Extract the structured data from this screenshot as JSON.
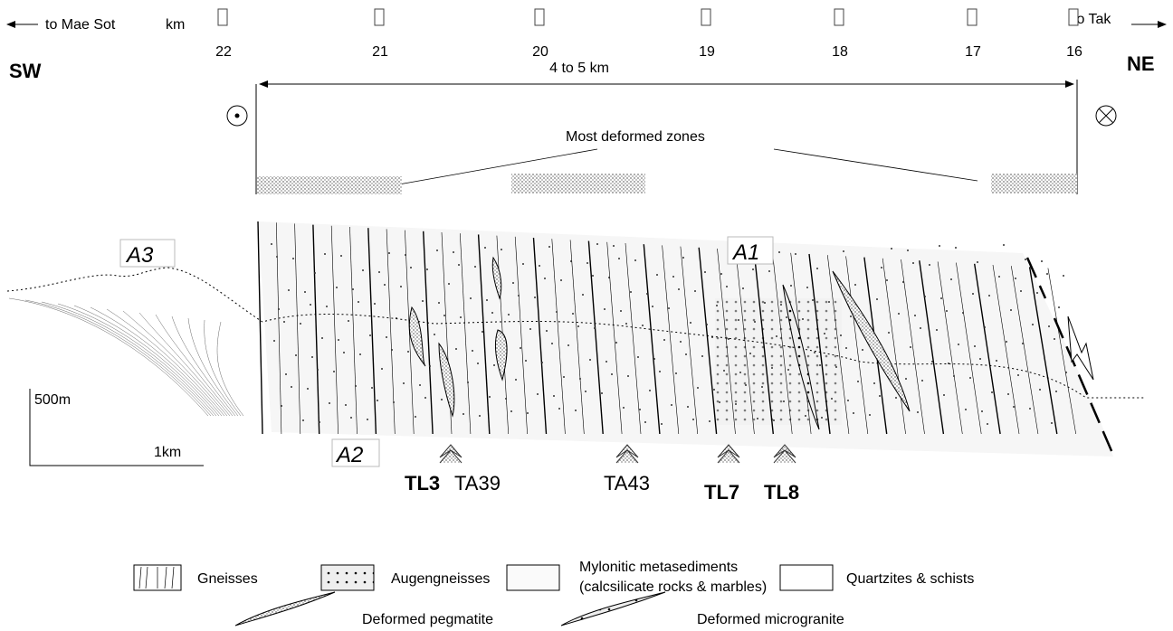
{
  "header": {
    "left_direction": "to Mae Sot",
    "unit": "km",
    "right_direction": "to Tak",
    "left_label": "SW",
    "right_label": "NE"
  },
  "km_markers": [
    "22",
    "21",
    "20",
    "19",
    "18",
    "17",
    "16"
  ],
  "width_label": "4 to 5 km",
  "zones_label": "Most deformed zones",
  "areas": [
    "A3",
    "A1",
    "A2"
  ],
  "scale": {
    "vertical": "500m",
    "horizontal": "1km"
  },
  "samples": [
    "TL3",
    "TA39",
    "TA43",
    "TL7",
    "TL8"
  ],
  "legend": {
    "gneisses": "Gneisses",
    "augengneisses": "Augengneisses",
    "mylonitic": "Mylonitic metasediments",
    "mylonitic_detail": "(calcsilicate rocks & marbles)",
    "quartzites": "Quartzites & schists",
    "pegmatite": "Deformed pegmatite",
    "microgranite": "Deformed microgranite"
  }
}
